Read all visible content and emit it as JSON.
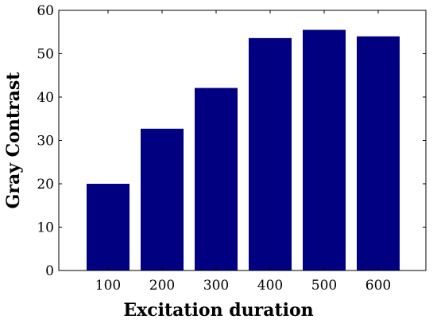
{
  "chart_data": {
    "type": "bar",
    "title": "",
    "xlabel": "Excitation duration",
    "ylabel": "Gray Contrast",
    "categories": [
      "100",
      "200",
      "300",
      "400",
      "500",
      "600"
    ],
    "values": [
      20.0,
      32.7,
      42.1,
      53.6,
      55.5,
      54.0
    ],
    "ylim": [
      0,
      60
    ],
    "yticks": [
      "0",
      "10",
      "20",
      "30",
      "40",
      "50",
      "60"
    ],
    "grid": false,
    "bar_color": "#000080"
  }
}
